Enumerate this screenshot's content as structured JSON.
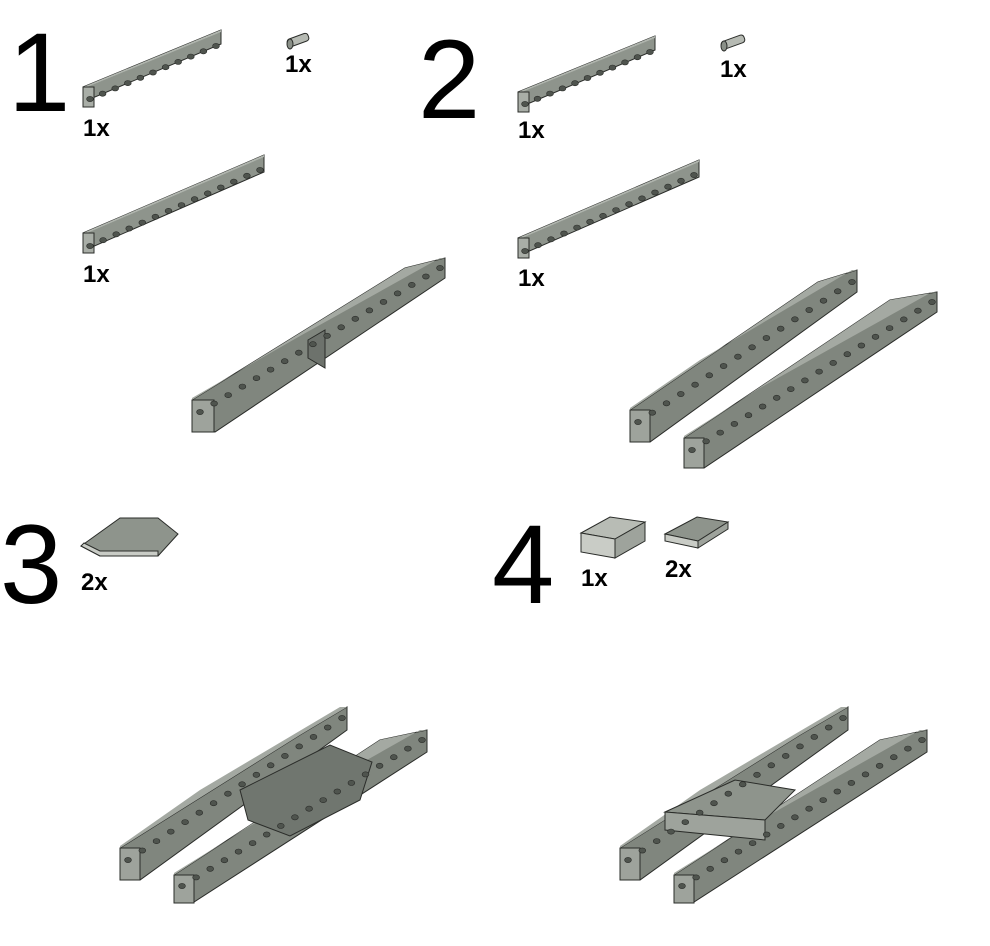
{
  "steps": [
    {
      "number": "1",
      "parts": [
        {
          "name": "technic-beam-12",
          "qty": "1x"
        },
        {
          "name": "technic-pin",
          "qty": "1x"
        },
        {
          "name": "technic-beam-14",
          "qty": "1x"
        }
      ]
    },
    {
      "number": "2",
      "parts": [
        {
          "name": "technic-beam-12",
          "qty": "1x"
        },
        {
          "name": "technic-pin",
          "qty": "1x"
        },
        {
          "name": "technic-beam-14",
          "qty": "1x"
        }
      ]
    },
    {
      "number": "3",
      "parts": [
        {
          "name": "wedge-plate",
          "qty": "2x"
        }
      ]
    },
    {
      "number": "4",
      "parts": [
        {
          "name": "brick-2x4",
          "qty": "1x"
        },
        {
          "name": "plate-2x4",
          "qty": "2x"
        }
      ]
    }
  ],
  "colors": {
    "part_gray": "#8a9088",
    "part_gray_light": "#a9aea7",
    "part_gray_dark": "#5f645e",
    "brick_light": "#c9ccc6",
    "outline": "#2a2c29"
  }
}
